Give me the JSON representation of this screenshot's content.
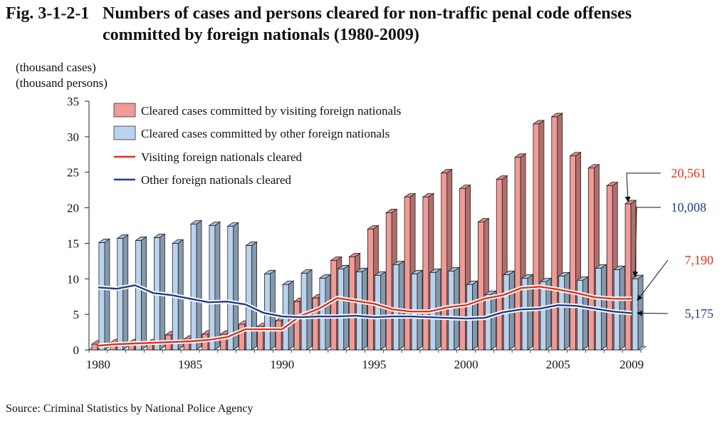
{
  "figure": {
    "number": "Fig. 3-1-2-1",
    "title_line1": "Numbers of cases and persons cleared for non-traffic penal code offenses",
    "title_line2": "committed by foreign nationals (1980-2009)",
    "unit_cases": "(thousand cases)",
    "unit_persons": "(thousand persons)",
    "source": "Source:  Criminal Statistics by National Police Agency"
  },
  "chart_data": {
    "type": "bar",
    "ylim": [
      0,
      35
    ],
    "yticks": [
      0,
      5,
      10,
      15,
      20,
      25,
      30,
      35
    ],
    "x_tick_labels": [
      "1980",
      "1985",
      "1990",
      "1995",
      "2000",
      "2005",
      "2009"
    ],
    "x_tick_years": [
      1980,
      1985,
      1990,
      1995,
      2000,
      2005,
      2009
    ],
    "categories": [
      1980,
      1981,
      1982,
      1983,
      1984,
      1985,
      1986,
      1987,
      1988,
      1989,
      1990,
      1991,
      1992,
      1993,
      1994,
      1995,
      1996,
      1997,
      1998,
      1999,
      2000,
      2001,
      2002,
      2003,
      2004,
      2005,
      2006,
      2007,
      2008,
      2009
    ],
    "colors": {
      "visiting_bar": "#f29a96",
      "other_bar": "#b9d3ee",
      "visiting_line": "#e0321e",
      "other_line": "#1f3d8c"
    },
    "series": [
      {
        "name": "Cleared cases committed by visiting foreign nationals",
        "type": "bar",
        "values": [
          0.8,
          1.0,
          1.0,
          1.0,
          2.1,
          1.5,
          2.2,
          2.2,
          3.6,
          3.3,
          4.1,
          6.8,
          7.3,
          12.6,
          13.1,
          17.0,
          19.3,
          21.5,
          21.5,
          24.9,
          22.7,
          18.0,
          24.0,
          27.1,
          31.8,
          32.8,
          27.3,
          25.6,
          23.1,
          20.561
        ]
      },
      {
        "name": "Cleared cases committed by other foreign nationals",
        "type": "bar",
        "values": [
          15.1,
          15.7,
          15.4,
          15.8,
          15.0,
          17.7,
          17.5,
          17.4,
          14.7,
          10.7,
          9.2,
          10.8,
          10.1,
          11.4,
          11.0,
          10.5,
          12.0,
          10.7,
          10.9,
          11.1,
          9.2,
          7.8,
          10.6,
          10.1,
          9.6,
          10.4,
          9.8,
          11.5,
          11.3,
          10.008
        ]
      },
      {
        "name": "Visiting foreign nationals cleared",
        "type": "line",
        "values": [
          0.6,
          0.8,
          0.9,
          1.0,
          1.1,
          1.2,
          1.4,
          1.8,
          2.9,
          2.9,
          2.9,
          4.8,
          5.8,
          7.3,
          6.9,
          6.5,
          5.7,
          5.4,
          5.4,
          6.0,
          6.3,
          7.2,
          7.7,
          8.7,
          8.9,
          8.5,
          8.0,
          7.4,
          7.2,
          7.19
        ]
      },
      {
        "name": "Other foreign nationals cleared",
        "type": "line",
        "values": [
          8.8,
          8.6,
          9.1,
          8.0,
          7.7,
          7.2,
          6.7,
          6.8,
          6.4,
          5.2,
          4.7,
          4.6,
          4.7,
          4.7,
          4.8,
          4.6,
          4.7,
          4.7,
          4.6,
          4.5,
          4.4,
          4.5,
          5.3,
          5.7,
          5.8,
          6.3,
          6.2,
          5.8,
          5.4,
          5.175
        ]
      }
    ],
    "annotations": [
      {
        "text": "20,561",
        "series": 0,
        "color": "#e0321e"
      },
      {
        "text": "10,008",
        "series": 1,
        "color": "#1f3d8c"
      },
      {
        "text": "7,190",
        "series": 2,
        "color": "#e0321e"
      },
      {
        "text": "5,175",
        "series": 3,
        "color": "#1f3d8c"
      }
    ],
    "legend_position": "top-left"
  }
}
